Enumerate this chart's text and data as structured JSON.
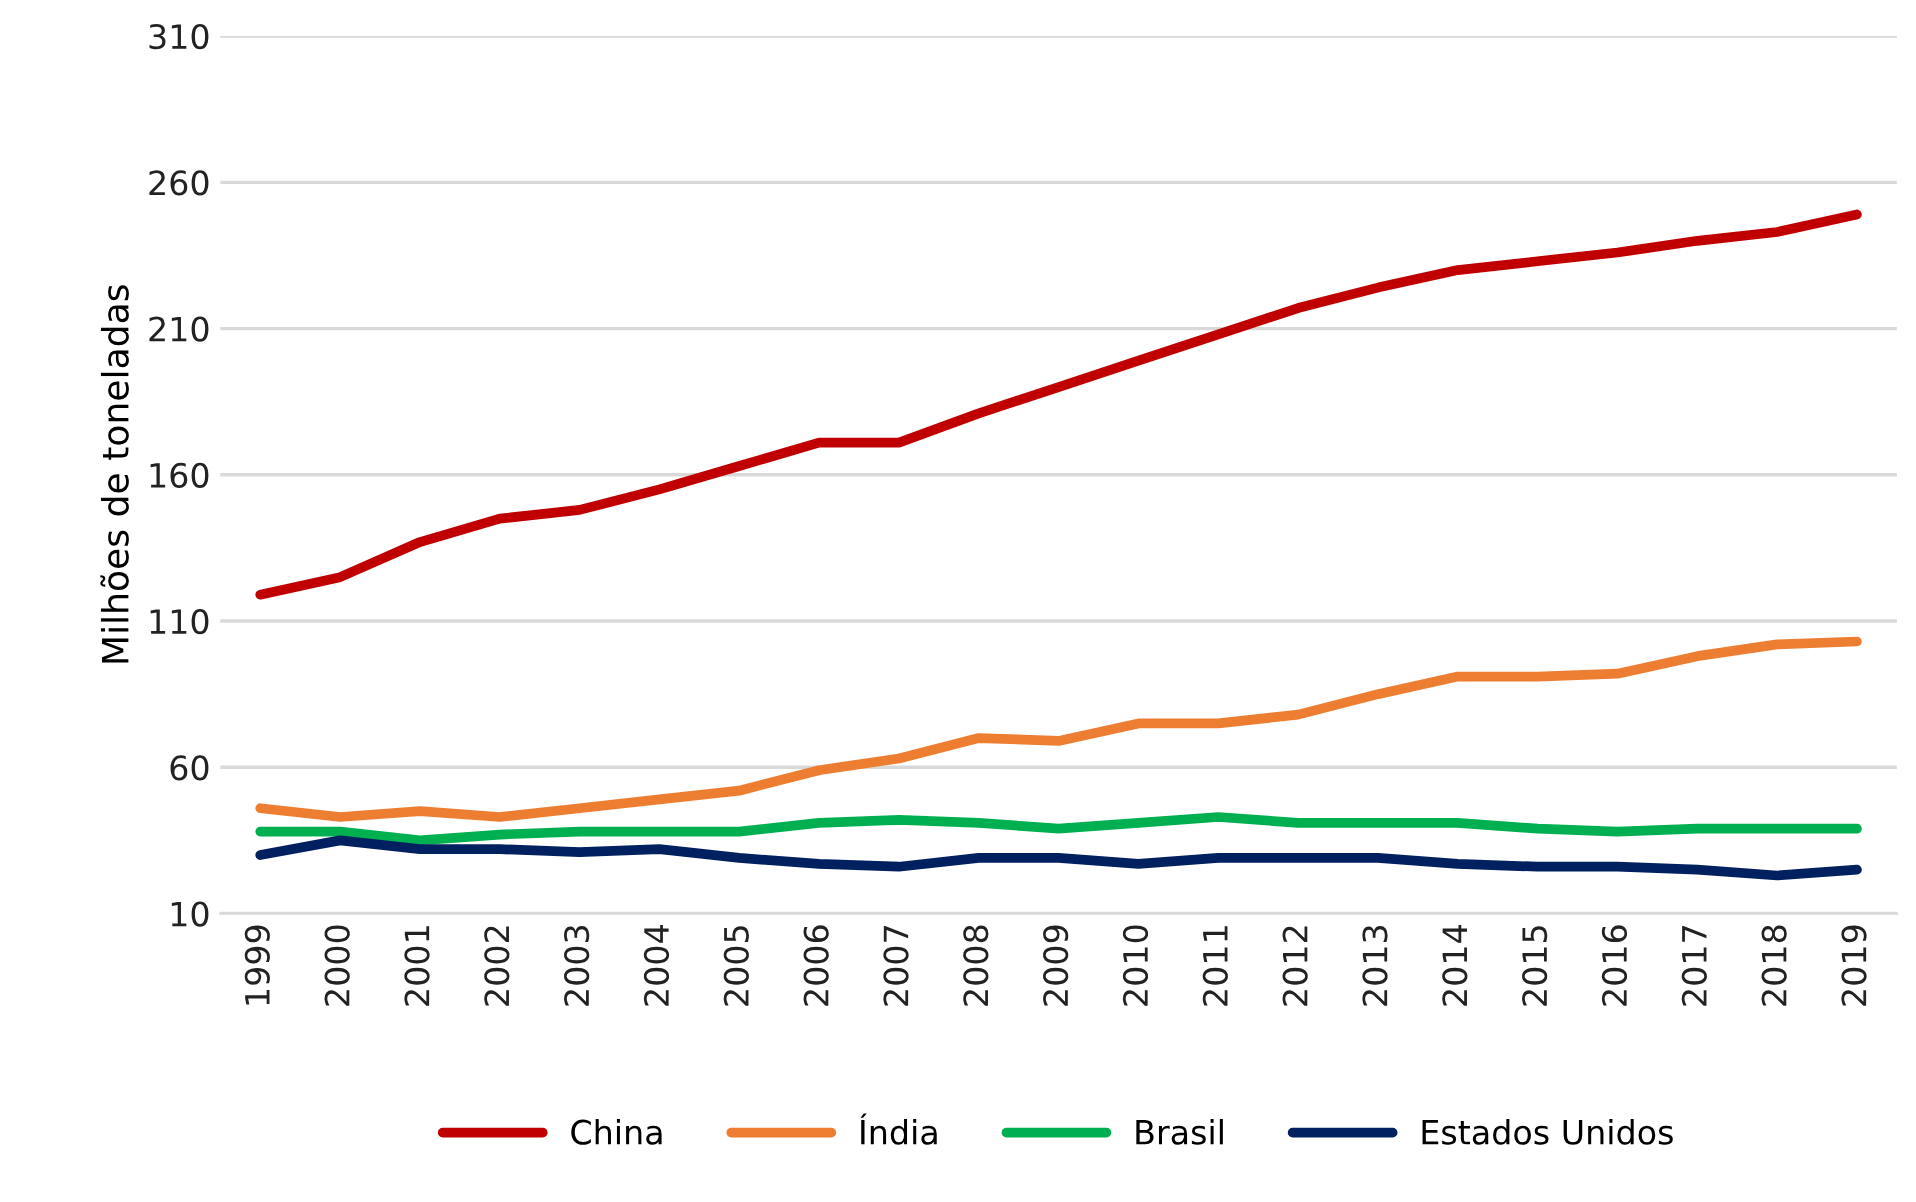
{
  "chart_data": {
    "type": "line",
    "ylabel": "Milhões de toneladas",
    "categories": [
      "1999",
      "2000",
      "2001",
      "2002",
      "2003",
      "2004",
      "2005",
      "2006",
      "2007",
      "2008",
      "2009",
      "2010",
      "2011",
      "2012",
      "2013",
      "2014",
      "2015",
      "2016",
      "2017",
      "2018",
      "2019"
    ],
    "series": [
      {
        "name": "China",
        "color": "#c00000",
        "values": [
          119,
          125,
          137,
          145,
          148,
          155,
          163,
          171,
          171,
          181,
          190,
          199,
          208,
          217,
          224,
          230,
          233,
          236,
          240,
          243,
          249
        ]
      },
      {
        "name": "Índia",
        "color": "#ed7d31",
        "values": [
          46,
          43,
          45,
          43,
          46,
          49,
          52,
          59,
          63,
          70,
          69,
          75,
          75,
          78,
          85,
          91,
          91,
          92,
          98,
          102,
          103
        ]
      },
      {
        "name": "Brasil",
        "color": "#00b050",
        "values": [
          38,
          38,
          35,
          37,
          38,
          38,
          38,
          41,
          42,
          41,
          39,
          41,
          43,
          41,
          41,
          41,
          39,
          38,
          39,
          39,
          39
        ]
      },
      {
        "name": "Estados Unidos",
        "color": "#002060",
        "values": [
          30,
          35,
          32,
          32,
          31,
          32,
          29,
          27,
          26,
          29,
          29,
          27,
          29,
          29,
          29,
          27,
          26,
          26,
          25,
          23,
          25
        ]
      }
    ],
    "ylim": [
      10,
      310
    ],
    "yticks": [
      10,
      60,
      110,
      160,
      210,
      260,
      310
    ],
    "grid": "y",
    "legend": "bottom",
    "line_style": "solid",
    "marker": "none"
  }
}
